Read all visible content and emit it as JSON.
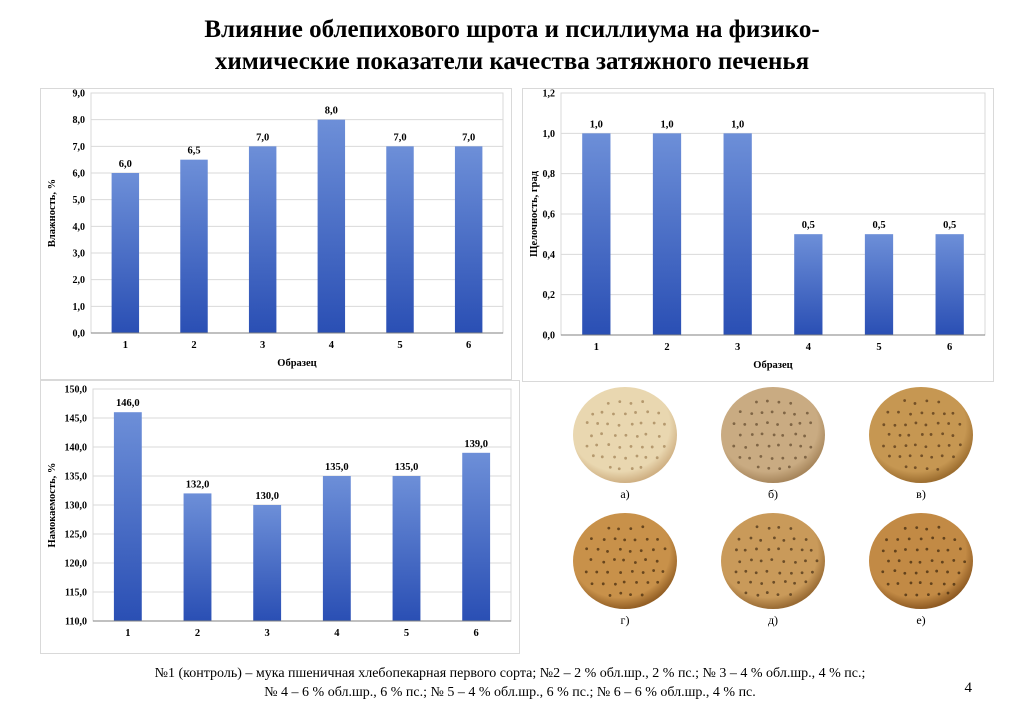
{
  "slide": {
    "title_lines": [
      "Влияние облепихового шрота и псиллиума на физико-",
      "химические показатели качества затяжного печенья"
    ],
    "page_number": "4",
    "footnote_lines": [
      "№1 (контроль) – мука пшеничная хлебопекарная первого сорта; №2 – 2 % обл.шр., 2 % пс.; № 3 – 4 % обл.шр., 4 % пс.;",
      "№ 4 – 6 % обл.шр., 6 % пс.; № 5 – 4 % обл.шр., 6 % пс.; № 6 – 6 % обл.шр., 4 % пс."
    ]
  },
  "colors": {
    "bar_top": "#6d8fd8",
    "bar_bottom": "#2a4fb4",
    "grid": "#d9d9d9",
    "axis": "#808080"
  },
  "chart_data": [
    {
      "id": "moisture",
      "type": "bar",
      "title": "",
      "categories": [
        "1",
        "2",
        "3",
        "4",
        "5",
        "6"
      ],
      "values": [
        6.0,
        6.5,
        7.0,
        8.0,
        7.0,
        7.0
      ],
      "data_labels": [
        "6,0",
        "6,5",
        "7,0",
        "8,0",
        "7,0",
        "7,0"
      ],
      "xlabel": "Образец",
      "ylabel": "Влажность, %",
      "ylim": [
        0,
        9
      ],
      "yticks": [
        0,
        1,
        2,
        3,
        4,
        5,
        6,
        7,
        8,
        9
      ],
      "ytick_labels": [
        "0,0",
        "1,0",
        "2,0",
        "3,0",
        "4,0",
        "5,0",
        "6,0",
        "7,0",
        "8,0",
        "9,0"
      ],
      "grid": true,
      "legend": "none"
    },
    {
      "id": "alkalinity",
      "type": "bar",
      "title": "",
      "categories": [
        "1",
        "2",
        "3",
        "4",
        "5",
        "6"
      ],
      "values": [
        1.0,
        1.0,
        1.0,
        0.5,
        0.5,
        0.5
      ],
      "data_labels": [
        "1,0",
        "1,0",
        "1,0",
        "0,5",
        "0,5",
        "0,5"
      ],
      "xlabel": "Образец",
      "ylabel": "Щелочность, град",
      "ylim": [
        0,
        1.2
      ],
      "yticks": [
        0,
        0.2,
        0.4,
        0.6,
        0.8,
        1.0,
        1.2
      ],
      "ytick_labels": [
        "0,0",
        "0,2",
        "0,4",
        "0,6",
        "0,8",
        "1,0",
        "1,2"
      ],
      "grid": true,
      "legend": "none"
    },
    {
      "id": "wettability",
      "type": "bar",
      "title": "",
      "categories": [
        "1",
        "2",
        "3",
        "4",
        "5",
        "6"
      ],
      "values": [
        146.0,
        132.0,
        130.0,
        135.0,
        135.0,
        139.0
      ],
      "data_labels": [
        "146,0",
        "132,0",
        "130,0",
        "135,0",
        "135,0",
        "139,0"
      ],
      "xlabel": "",
      "ylabel": "Намокаемость, %",
      "ylim": [
        110,
        150
      ],
      "yticks": [
        110,
        115,
        120,
        125,
        130,
        135,
        140,
        145,
        150
      ],
      "ytick_labels": [
        "110,0",
        "115,0",
        "120,0",
        "125,0",
        "130,0",
        "135,0",
        "140,0",
        "145,0",
        "150,0"
      ],
      "grid": true,
      "legend": "none"
    }
  ],
  "photos": [
    {
      "label": "а)",
      "crust": "#e9d7b0",
      "rim": "#cfb083",
      "dot": "#a88a5e"
    },
    {
      "label": "б)",
      "crust": "#c9ab82",
      "rim": "#a7865c",
      "dot": "#6d5436"
    },
    {
      "label": "в)",
      "crust": "#c69752",
      "rim": "#9c6d2f",
      "dot": "#5e3f1d"
    },
    {
      "label": "г)",
      "crust": "#c8914a",
      "rim": "#935f25",
      "dot": "#4f3212"
    },
    {
      "label": "д)",
      "crust": "#c99a5a",
      "rim": "#986a33",
      "dot": "#54391c"
    },
    {
      "label": "е)",
      "crust": "#c28a45",
      "rim": "#8e5a22",
      "dot": "#4a2f12"
    }
  ]
}
